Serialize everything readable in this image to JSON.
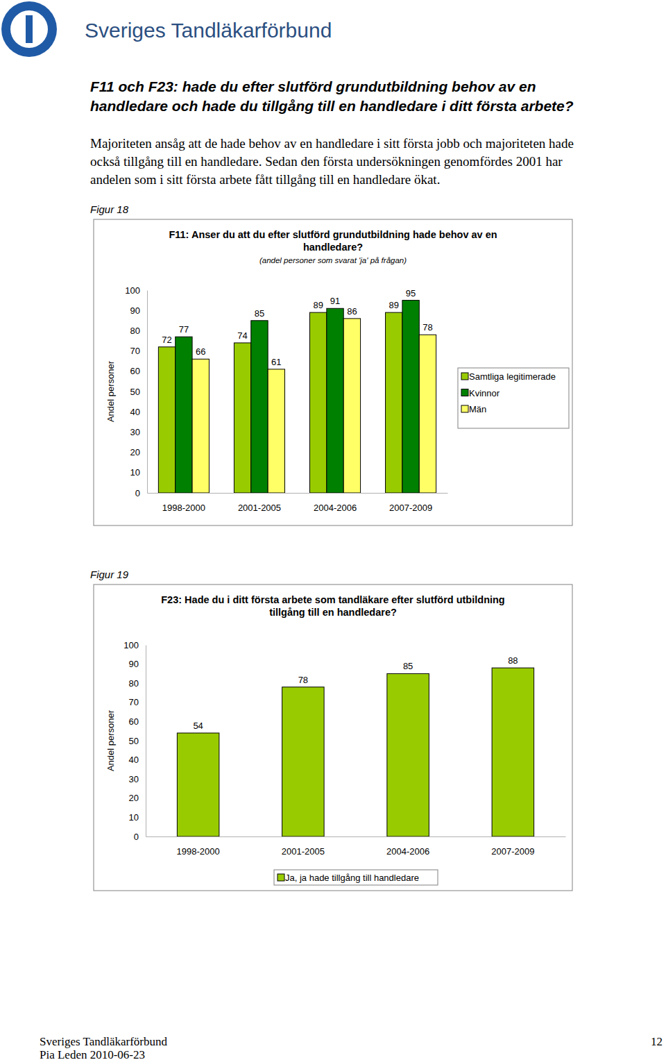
{
  "header": {
    "org": "Sveriges Tandläkarförbund"
  },
  "heading": [
    "F11 och F23: hade du efter slutförd grundutbildning behov av en",
    "handledare och hade du tillgång till en handledare i ditt första arbete?"
  ],
  "paragraph": [
    "Majoriteten ansåg att de hade behov av en handledare i sitt första jobb och majoriteten hade",
    "också tillgång till en handledare. Sedan den första undersökningen genomfördes 2001 har",
    "andelen som i sitt första arbete fått tillgång till en handledare ökat."
  ],
  "figures": [
    "Figur 18",
    "Figur 19"
  ],
  "footer": {
    "org": "Sveriges Tandläkarförbund",
    "page": "12",
    "author_date": "Pia Leden 2010-06-23"
  },
  "chart_data": [
    {
      "type": "bar",
      "title": "F11: Anser du att du efter slutförd grundutbildning hade behov av en handledare?",
      "subtitle": "(andel personer som svarat 'ja' på frågan)",
      "y_label": "Andel personer",
      "categories": [
        "1998-2000",
        "2001-2005",
        "2004-2006",
        "2007-2009"
      ],
      "series": [
        {
          "name": "Samtliga legitimerade",
          "color": "#99cc00",
          "values": [
            72,
            74,
            89,
            89
          ]
        },
        {
          "name": "Kvinnor",
          "color": "#008000",
          "values": [
            77,
            85,
            91,
            95
          ]
        },
        {
          "name": "Män",
          "color": "#ffff66",
          "values": [
            66,
            61,
            86,
            78
          ]
        }
      ],
      "ylim": [
        0,
        100
      ],
      "yticks": [
        0,
        10,
        20,
        30,
        40,
        50,
        60,
        70,
        80,
        90,
        100
      ],
      "grid": false,
      "legend": "right",
      "data_labels": true
    },
    {
      "type": "bar",
      "title": "F23: Hade du i ditt första arbete som tandläkare efter slutförd utbildning tillgång till en handledare?",
      "y_label": "Andel personer",
      "categories": [
        "1998-2000",
        "2001-2005",
        "2004-2006",
        "2007-2009"
      ],
      "series": [
        {
          "name": "Ja, ja hade tillgång till handledare",
          "color": "#99cc00",
          "values": [
            54,
            78,
            85,
            88
          ]
        }
      ],
      "ylim": [
        0,
        100
      ],
      "yticks": [
        0,
        10,
        20,
        30,
        40,
        50,
        60,
        70,
        80,
        90,
        100
      ],
      "grid": false,
      "legend": "bottom",
      "data_labels": true
    }
  ]
}
